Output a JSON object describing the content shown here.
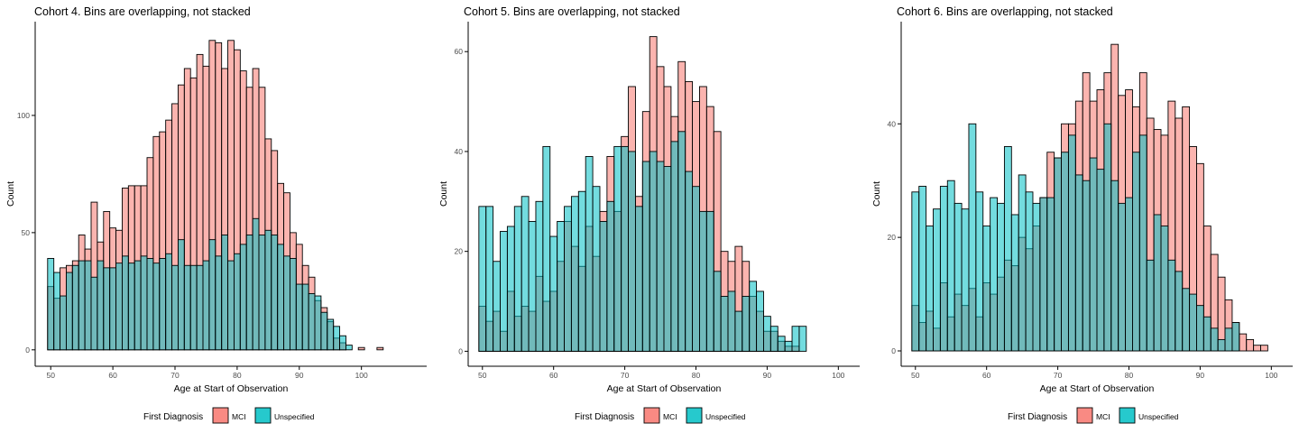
{
  "chart_data": [
    {
      "type": "bar",
      "title": "Cohort 4. Bins are overlapping, not stacked",
      "xlabel": "Age at Start of Observation",
      "ylabel": "Count",
      "xlim": [
        47.5,
        110.5
      ],
      "ylim": [
        -7,
        140
      ],
      "xticks": [
        50,
        60,
        70,
        80,
        90,
        100
      ],
      "yticks": [
        0,
        50,
        100
      ],
      "bins": {
        "start": 50,
        "width": 1
      },
      "grid": false,
      "legend_position": "bottom",
      "legend_title": "First Diagnosis",
      "series": [
        {
          "name": "MCI",
          "color": "#F8766D",
          "values": [
            27,
            22,
            35,
            36,
            38,
            49,
            43,
            63,
            46,
            59,
            52,
            51,
            69,
            70,
            70,
            70,
            82,
            91,
            93,
            98,
            105,
            113,
            120,
            116,
            126,
            121,
            132,
            131,
            120,
            132,
            128,
            119,
            112,
            120,
            112,
            90,
            85,
            71,
            67,
            50,
            45,
            36,
            31,
            21,
            18,
            12,
            5,
            3,
            0,
            0,
            1,
            0,
            0,
            1,
            0,
            0,
            0,
            0,
            0,
            0
          ]
        },
        {
          "name": "Unspecified",
          "color": "#00BFC4",
          "values": [
            39,
            33,
            23,
            33,
            36,
            38,
            38,
            31,
            38,
            35,
            35,
            37,
            40,
            37,
            38,
            40,
            39,
            37,
            39,
            41,
            36,
            47,
            36,
            36,
            36,
            38,
            47,
            40,
            49,
            38,
            41,
            45,
            49,
            56,
            49,
            51,
            49,
            45,
            40,
            39,
            28,
            28,
            24,
            23,
            16,
            13,
            10,
            6,
            2,
            0,
            0,
            0,
            0,
            0,
            0,
            0,
            0,
            0,
            0,
            0
          ]
        }
      ]
    },
    {
      "type": "bar",
      "title": "Cohort 5. Bins are overlapping, not stacked",
      "xlabel": "Age at Start of Observation",
      "ylabel": "Count",
      "xlim": [
        48,
        103
      ],
      "ylim": [
        -3,
        66
      ],
      "xticks": [
        50,
        60,
        70,
        80,
        90,
        100
      ],
      "yticks": [
        0,
        20,
        40,
        60
      ],
      "bins": {
        "start": 50,
        "width": 1
      },
      "grid": false,
      "legend_position": "bottom",
      "legend_title": "First Diagnosis",
      "series": [
        {
          "name": "MCI",
          "color": "#F8766D",
          "values": [
            9,
            6,
            8,
            4,
            12,
            7,
            9,
            8,
            15,
            10,
            12,
            18,
            26,
            21,
            17,
            25,
            19,
            28,
            39,
            28,
            43,
            53,
            31,
            48,
            63,
            57,
            53,
            47,
            58,
            54,
            50,
            53,
            49,
            44,
            20,
            18,
            21,
            18,
            11,
            8,
            4,
            4,
            2,
            1,
            1,
            0,
            0,
            0,
            0,
            0,
            0
          ]
        },
        {
          "name": "Unspecified",
          "color": "#00BFC4",
          "values": [
            29,
            29,
            18,
            24,
            25,
            29,
            31,
            26,
            30,
            41,
            23,
            26,
            29,
            31,
            32,
            39,
            33,
            26,
            30,
            41,
            41,
            40,
            29,
            38,
            40,
            38,
            37,
            42,
            44,
            36,
            33,
            28,
            28,
            16,
            11,
            12,
            8,
            11,
            14,
            12,
            7,
            5,
            3,
            2,
            5,
            5,
            0,
            0,
            0,
            0,
            0
          ]
        }
      ]
    },
    {
      "type": "bar",
      "title": "Cohort 6. Bins are overlapping, not stacked",
      "xlabel": "Age at Start of Observation",
      "ylabel": "Count",
      "xlim": [
        48,
        103
      ],
      "ylim": [
        -2.7,
        58
      ],
      "xticks": [
        50,
        60,
        70,
        80,
        90,
        100
      ],
      "yticks": [
        0,
        20,
        40
      ],
      "bins": {
        "start": 50,
        "width": 1
      },
      "grid": false,
      "legend_position": "bottom",
      "legend_title": "First Diagnosis",
      "series": [
        {
          "name": "MCI",
          "color": "#F8766D",
          "values": [
            8,
            5,
            7,
            4,
            12,
            6,
            10,
            8,
            11,
            6,
            12,
            10,
            13,
            16,
            15,
            20,
            18,
            22,
            27,
            35,
            34,
            40,
            40,
            44,
            49,
            44,
            46,
            49,
            54,
            45,
            46,
            43,
            49,
            41,
            39,
            38,
            44,
            41,
            43,
            36,
            33,
            22,
            17,
            13,
            9,
            5,
            3,
            2,
            1,
            1,
            0
          ]
        },
        {
          "name": "Unspecified",
          "color": "#00BFC4",
          "values": [
            28,
            29,
            22,
            25,
            29,
            30,
            26,
            25,
            40,
            28,
            22,
            27,
            26,
            36,
            24,
            31,
            28,
            26,
            27,
            27,
            34,
            35,
            38,
            31,
            30,
            34,
            32,
            40,
            30,
            26,
            27,
            35,
            38,
            16,
            24,
            22,
            16,
            14,
            11,
            10,
            8,
            6,
            4,
            2,
            4,
            5,
            0,
            0,
            0,
            0,
            0
          ]
        }
      ]
    }
  ]
}
